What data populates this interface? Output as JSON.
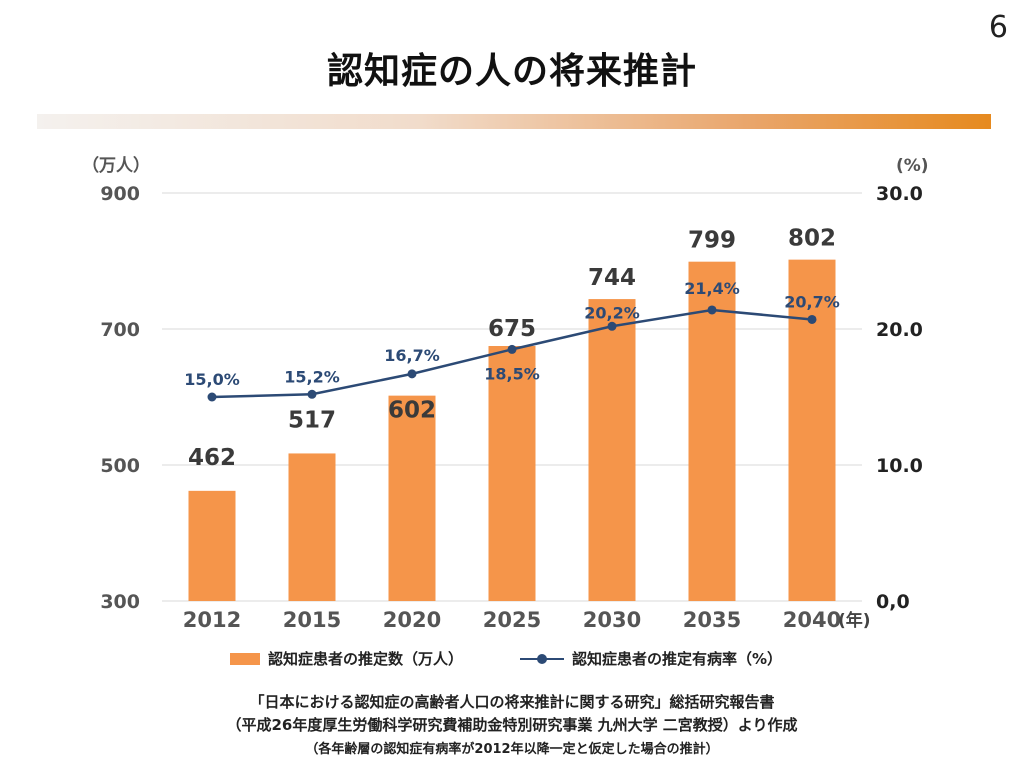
{
  "page_number": "6",
  "title": "認知症の人の将来推計",
  "chart_data": {
    "type": "bar",
    "categories": [
      "2012",
      "2015",
      "2020",
      "2025",
      "2030",
      "2035",
      "2040"
    ],
    "xlabel": "(年)",
    "series": [
      {
        "name": "認知症患者の推定数（万人）",
        "type": "bar",
        "axis": "left",
        "values": [
          462,
          517,
          602,
          675,
          744,
          799,
          802
        ],
        "labels": [
          "462",
          "517",
          "602",
          "675",
          "744",
          "799",
          "802"
        ],
        "color": "#f5954a"
      },
      {
        "name": "認知症患者の推定有病率（%）",
        "type": "line",
        "axis": "right",
        "values": [
          15.0,
          15.2,
          16.7,
          18.5,
          20.2,
          21.4,
          20.7
        ],
        "labels": [
          "15,0%",
          "15,2%",
          "16,7%",
          "18,5%",
          "20,2%",
          "21,4%",
          "20,7%"
        ],
        "color": "#2c4a75"
      }
    ],
    "y_left": {
      "unit_label": "（万人）",
      "ylim": [
        300,
        900
      ],
      "ticks": [
        300,
        500,
        700,
        900
      ],
      "tick_labels": [
        "300",
        "500",
        "700",
        "900"
      ]
    },
    "y_right": {
      "unit_label": "(%)",
      "ylim": [
        0,
        30
      ],
      "ticks": [
        0,
        10,
        20,
        30
      ],
      "tick_labels": [
        "0,0",
        "10.0",
        "20.0",
        "30.0"
      ]
    },
    "grid": true,
    "legend_position": "bottom"
  },
  "source": {
    "line1": "「日本における認知症の高齢者人口の将来推計に関する研究」総括研究報告書",
    "line2": "（平成26年度厚生労働科学研究費補助金特別研究事業 九州大学 二宮教授）より作成",
    "line3": "（各年齢層の認知症有病率が2012年以降一定と仮定した場合の推計）"
  }
}
